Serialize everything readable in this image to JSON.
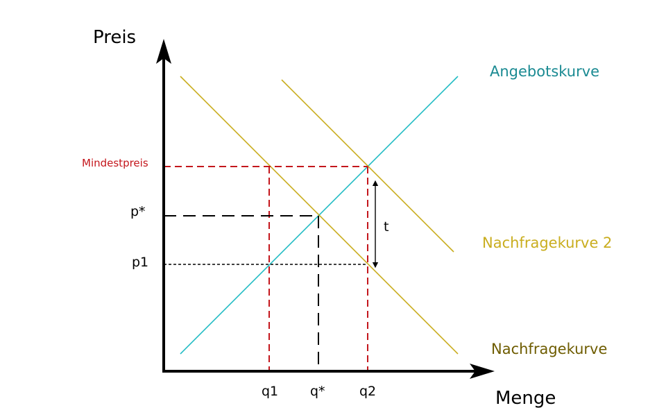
{
  "axes": {
    "y_label": "Preis",
    "x_label": "Menge"
  },
  "curves": {
    "supply": "Angebotskurve",
    "demand": "Nachfragekurve",
    "demand2": "Nachfragekurve 2"
  },
  "price_labels": {
    "minimum_price": "Mindestpreis",
    "p_star": "p*",
    "p1": "p1"
  },
  "quantity_labels": {
    "q1": "q1",
    "q_star": "q*",
    "q2": "q2"
  },
  "tax_label": "t",
  "colors": {
    "supply": "#22bcc4",
    "supply_label": "#1a8a92",
    "demand": "#c9ad1e",
    "demand_label": "#6e5c00",
    "demand2_label": "#c9ad1e",
    "minimum_price": "#c4161c",
    "axis": "#000000"
  }
}
